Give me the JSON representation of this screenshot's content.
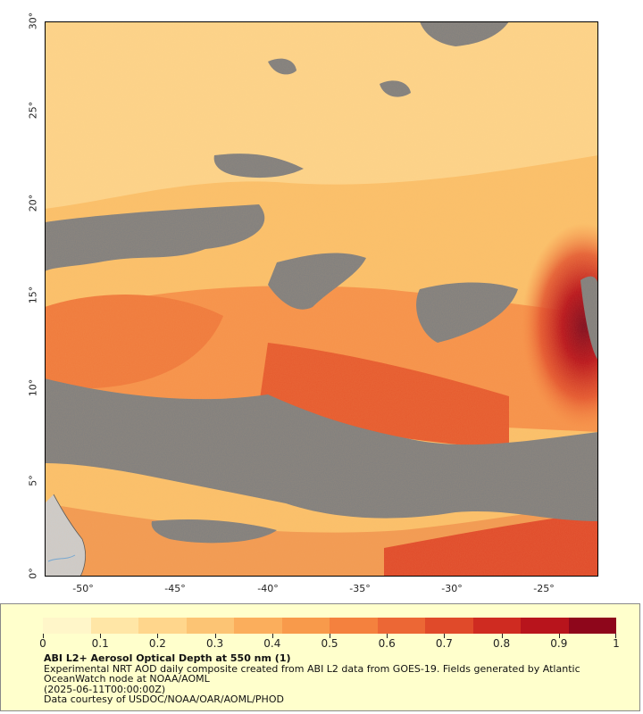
{
  "map": {
    "lat_axis": {
      "labels": [
        "0°",
        "5°",
        "10°",
        "15°",
        "20°",
        "25°",
        "30°"
      ],
      "range": [
        0,
        30
      ]
    },
    "lon_axis": {
      "labels": [
        "-50°",
        "-45°",
        "-40°",
        "-35°",
        "-30°",
        "-25°"
      ],
      "range": [
        -52,
        -22
      ]
    },
    "colors": {
      "no_data": "#7f7f7f",
      "land": "#cccccc",
      "low": "#fde3a6",
      "mid": "#f7a24a",
      "high": "#d4231c",
      "max": "#7e0a1e"
    },
    "variable": "Aerosol Optical Depth at 550 nm"
  },
  "colorbar": {
    "ticks": [
      "0",
      "0.1",
      "0.2",
      "0.3",
      "0.4",
      "0.5",
      "0.6",
      "0.7",
      "0.8",
      "0.9",
      "1"
    ],
    "range": [
      0,
      1
    ],
    "colors": [
      "#fff6c9",
      "#ffe6a6",
      "#ffd68c",
      "#fcc474",
      "#fbae5c",
      "#f89a4b",
      "#f4813e",
      "#ec6735",
      "#e04a2a",
      "#cf2b21",
      "#b8141c",
      "#8e061b"
    ]
  },
  "legend": {
    "title": "ABI L2+ Aerosol Optical Depth at 550 nm (1)",
    "line1": "Experimental NRT AOD daily composite created from ABI L2 data from GOES-19. Fields generated by Atlantic",
    "line2": "OceanWatch node at NOAA/AOML",
    "line3": "(2025-06-11T00:00:00Z)",
    "line4": "Data courtesy of USDOC/NOAA/OAR/AOML/PHOD"
  }
}
